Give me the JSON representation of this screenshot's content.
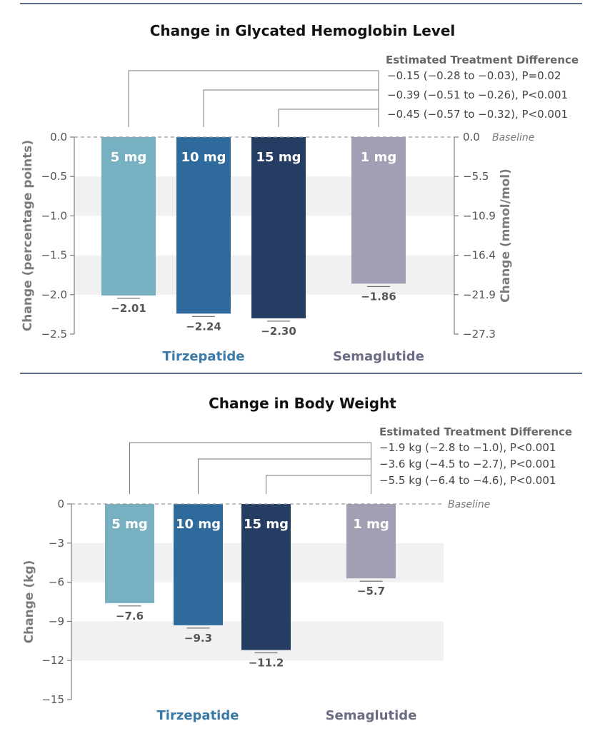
{
  "charts": [
    {
      "title": "Change in Glycated Hemoglobin Level",
      "etd_heading": "Estimated Treatment Difference",
      "etd_rows": [
        "−0.15 (−0.28 to −0.03), P=0.02",
        "−0.39 (−0.51 to −0.26), P<0.001",
        "−0.45 (−0.57 to −0.32), P<0.001"
      ],
      "baseline_label": "Baseline",
      "ylabel": "Change (percentage points)",
      "y2label": "Change (mmol/mol)",
      "yticks": [
        "0.0",
        "−0.5",
        "−1.0",
        "−1.5",
        "−2.0",
        "−2.5"
      ],
      "y2ticks": [
        "0.0",
        "−5.5",
        "−10.9",
        "−16.4",
        "−21.9",
        "−27.3"
      ],
      "bar_labels": [
        "5 mg",
        "10 mg",
        "15 mg",
        "1 mg"
      ],
      "value_labels": [
        "−2.01",
        "−2.24",
        "−2.30",
        "−1.86"
      ],
      "group_labels": [
        "Tirzepatide",
        "Semaglutide"
      ]
    },
    {
      "title": "Change in Body Weight",
      "etd_heading": "Estimated Treatment Difference",
      "etd_rows": [
        "−1.9 kg (−2.8 to −1.0), P<0.001",
        "−3.6 kg (−4.5 to −2.7), P<0.001",
        "−5.5 kg (−6.4 to −4.6), P<0.001"
      ],
      "baseline_label": "Baseline",
      "ylabel": "Change (kg)",
      "yticks": [
        "0",
        "−3",
        "−6",
        "−9",
        "−12",
        "−15"
      ],
      "bar_labels": [
        "5 mg",
        "10 mg",
        "15 mg",
        "1 mg"
      ],
      "value_labels": [
        "−7.6",
        "−9.3",
        "−11.2",
        "−5.7"
      ],
      "group_labels": [
        "Tirzepatide",
        "Semaglutide"
      ]
    }
  ],
  "colors": {
    "tirz_5mg": "#77b1c1",
    "tirz_10mg": "#2e6b9c",
    "tirz_15mg": "#253c63",
    "sema_1mg": "#a29fb4",
    "tirzepatide_text": "#3a7aa8",
    "semaglutide_text": "#6b6b85",
    "band": "#f1f1f1"
  },
  "chart_data": [
    {
      "type": "bar",
      "title": "Change in Glycated Hemoglobin Level",
      "categories": [
        "5 mg",
        "10 mg",
        "15 mg",
        "1 mg"
      ],
      "groups": [
        "Tirzepatide",
        "Tirzepatide",
        "Tirzepatide",
        "Semaglutide"
      ],
      "values": [
        -2.01,
        -2.24,
        -2.3,
        -1.86
      ],
      "ylabel": "Change (percentage points)",
      "y2label": "Change (mmol/mol)",
      "ylim": [
        -2.5,
        0
      ],
      "y2lim": [
        -27.3,
        0
      ],
      "grid": "alternating bands"
    },
    {
      "type": "bar",
      "title": "Change in Body Weight",
      "categories": [
        "5 mg",
        "10 mg",
        "15 mg",
        "1 mg"
      ],
      "groups": [
        "Tirzepatide",
        "Tirzepatide",
        "Tirzepatide",
        "Semaglutide"
      ],
      "values": [
        -7.6,
        -9.3,
        -11.2,
        -5.7
      ],
      "ylabel": "Change (kg)",
      "ylim": [
        -15,
        0
      ],
      "grid": "alternating bands"
    }
  ]
}
